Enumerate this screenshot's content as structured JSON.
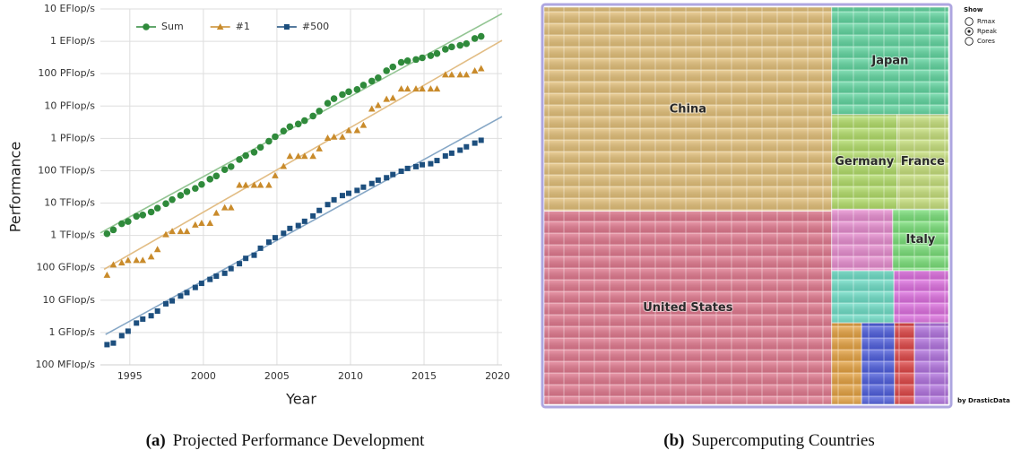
{
  "chart_data": [
    {
      "type": "scatter",
      "xlabel": "Year",
      "ylabel": "Performance",
      "xlim": [
        1993,
        2020.3
      ],
      "xticks": [
        1995,
        2000,
        2005,
        2010,
        2015,
        2020
      ],
      "log_y": true,
      "ylim": [
        100000000.0,
        1e+19
      ],
      "yticks": [
        {
          "value": 100000000.0,
          "label": "100 MFlop/s"
        },
        {
          "value": 1000000000.0,
          "label": "1 GFlop/s"
        },
        {
          "value": 10000000000.0,
          "label": "10 GFlop/s"
        },
        {
          "value": 100000000000.0,
          "label": "100 GFlop/s"
        },
        {
          "value": 1000000000000.0,
          "label": "1 TFlop/s"
        },
        {
          "value": 10000000000000.0,
          "label": "10 TFlop/s"
        },
        {
          "value": 100000000000000.0,
          "label": "100 TFlop/s"
        },
        {
          "value": 1000000000000000.0,
          "label": "1 PFlop/s"
        },
        {
          "value": 1e+16,
          "label": "10 PFlop/s"
        },
        {
          "value": 1e+17,
          "label": "100 PFlop/s"
        },
        {
          "value": 1e+18,
          "label": "1 EFlop/s"
        },
        {
          "value": 1e+19,
          "label": "10 EFlop/s"
        }
      ],
      "grid": true,
      "legend": "top-left",
      "x": [
        1993.45,
        1993.88,
        1994.45,
        1994.88,
        1995.45,
        1995.88,
        1996.45,
        1996.88,
        1997.45,
        1997.88,
        1998.45,
        1998.88,
        1999.45,
        1999.88,
        2000.45,
        2000.88,
        2001.45,
        2001.88,
        2002.45,
        2002.88,
        2003.45,
        2003.88,
        2004.45,
        2004.88,
        2005.45,
        2005.88,
        2006.45,
        2006.88,
        2007.45,
        2007.88,
        2008.45,
        2008.88,
        2009.45,
        2009.88,
        2010.45,
        2010.88,
        2011.45,
        2011.88,
        2012.45,
        2012.88,
        2013.45,
        2013.88,
        2014.45,
        2014.88,
        2015.45,
        2015.88,
        2016.45,
        2016.88,
        2017.45,
        2017.88,
        2018.45,
        2018.88
      ],
      "series": [
        {
          "name": "Sum",
          "color": "#2f8a3b",
          "marker": "circle",
          "values": [
            1128000000000.0,
            1490000000000.0,
            2300000000000.0,
            2700000000000.0,
            3900000000000.0,
            4300000000000.0,
            5300000000000.0,
            7000000000000.0,
            9600000000000.0,
            12800000000000.0,
            17300000000000.0,
            22500000000000.0,
            28500000000000.0,
            37700000000000.0,
            55000000000000.0,
            69000000000000.0,
            108000000000000.0,
            134000000000000.0,
            222000000000000.0,
            293000000000000.0,
            374000000000000.0,
            528000000000000.0,
            813000000000000.0,
            1127000000000000.0,
            1690000000000000.0,
            2300000000000000.0,
            2790000000000000.0,
            3540000000000000.0,
            4920000000000000.0,
            6970000000000000.0,
            1.22e+16,
            1.69e+16,
            2.26e+16,
            2.76e+16,
            3.24e+16,
            4.42e+16,
            5.89e+16,
            7.42e+16,
            1.23e+17,
            1.62e+17,
            2.23e+17,
            2.5e+17,
            2.74e+17,
            3.09e+17,
            3.61e+17,
            4.2e+17,
            5.67e+17,
            6.72e+17,
            7.49e+17,
            8.45e+17,
            1.22e+18,
            1.42e+18
          ]
        },
        {
          "name": "#1",
          "color": "#c98b2b",
          "marker": "triangle",
          "values": [
            59700000000.0,
            124000000000.0,
            143400000000.0,
            170000000000.0,
            170000000000.0,
            170000000000.0,
            220300000000.0,
            368000000000.0,
            1068000000000.0,
            1338000000000.0,
            1338000000000.0,
            1338000000000.0,
            2121000000000.0,
            2379000000000.0,
            2379000000000.0,
            4938000000000.0,
            7226000000000.0,
            7226000000000.0,
            35860000000000.0,
            35860000000000.0,
            35860000000000.0,
            35860000000000.0,
            35860000000000.0,
            70720000000000.0,
            136800000000000.0,
            280600000000000.0,
            280600000000000.0,
            280600000000000.0,
            280600000000000.0,
            478200000000000.0,
            1026000000000000.0,
            1105000000000000.0,
            1105000000000000.0,
            1759000000000000.0,
            1759000000000000.0,
            2566000000000000.0,
            8162000000000000.0,
            1.051e+16,
            1.6324e+16,
            1.759e+16,
            3.3863e+16,
            3.3863e+16,
            3.3863e+16,
            3.3863e+16,
            3.3863e+16,
            3.3863e+16,
            9.3015e+16,
            9.3015e+16,
            9.3015e+16,
            9.3015e+16,
            1.223e+17,
            1.435e+17
          ]
        },
        {
          "name": "#500",
          "color": "#1d4f7e",
          "marker": "square",
          "values": [
            422000000.0,
            472000000.0,
            800000000.0,
            1100000000.0,
            1960000000.0,
            2600000000.0,
            3300000000.0,
            4600000000.0,
            7700000000.0,
            9500000000.0,
            13400000000.0,
            17100000000.0,
            24700000000.0,
            33100000000.0,
            43800000000.0,
            55100000000.0,
            67800000000.0,
            94300000000.0,
            134000000000.0,
            196000000000.0,
            245000000000.0,
            403000000000.0,
            624000000000.0,
            851000000000.0,
            1166000000000.0,
            1646000000000.0,
            2026000000000.0,
            2737000000000.0,
            4005000000000.0,
            5929000000000.0,
            9000000000000.0,
            12640000000000.0,
            17100000000000.0,
            20050000000000.0,
            24670000000000.0,
            31120000000000.0,
            40190000000000.0,
            51200000000000.0,
            60800000000000.0,
            76500000000000.0,
            96600000000000.0,
            117800000000000.0,
            133700000000000.0,
            153400000000000.0,
            164800000000000.0,
            206400000000000.0,
            285900000000000.0,
            349300000000000.0,
            432200000000000.0,
            548700000000000.0,
            715600000000000.0,
            874800000000000.0
          ]
        }
      ],
      "trends": [
        {
          "color": "#93c593",
          "x": [
            1993,
            2020.3
          ],
          "values": [
            1200000000000.0,
            7.2e+18
          ]
        },
        {
          "color": "#e2bd85",
          "x": [
            1993.25,
            2020.3
          ],
          "values": [
            90000000000.0,
            1.07e+18
          ]
        },
        {
          "color": "#86a7c6",
          "x": [
            1993.35,
            2020.3
          ],
          "values": [
            870000000.0,
            4700000000000000.0
          ]
        }
      ]
    },
    {
      "type": "treemap",
      "items": [
        {
          "name": "China",
          "value": 72186,
          "color": "#e6c27a"
        },
        {
          "name": "United States",
          "value": 68370,
          "color": "#e47a90"
        },
        {
          "name": "Japan",
          "value": 15444,
          "color": "#62d9a2"
        },
        {
          "name": "Germany",
          "value": 7622,
          "color": "#b4e06a"
        },
        {
          "name": "France",
          "value": 5974,
          "color": "#c8e27c"
        },
        {
          "name": null,
          "value": 4623,
          "color": "#ea8ed2"
        },
        {
          "name": "Italy",
          "value": 4221,
          "color": "#7be27a"
        },
        {
          "name": null,
          "value": 4000,
          "color": "#6fe0c8"
        },
        {
          "name": null,
          "value": 3500,
          "color": "#e070e2"
        },
        {
          "name": null,
          "value": 3000,
          "color": "#e8a442"
        },
        {
          "name": null,
          "value": 3300,
          "color": "#4f5fe0"
        },
        {
          "name": null,
          "value": 2000,
          "color": "#e24848"
        },
        {
          "name": null,
          "value": 3400,
          "color": "#b474e2"
        }
      ],
      "show": {
        "label": "Show",
        "options": [
          "Rmax",
          "Rpeak",
          "Cores"
        ],
        "selected": 1
      },
      "credit": "by DrasticData"
    }
  ],
  "captions": [
    {
      "label": "(a)",
      "text": "Projected Performance Development"
    },
    {
      "label": "(b)",
      "text": "Supercomputing Countries"
    }
  ]
}
